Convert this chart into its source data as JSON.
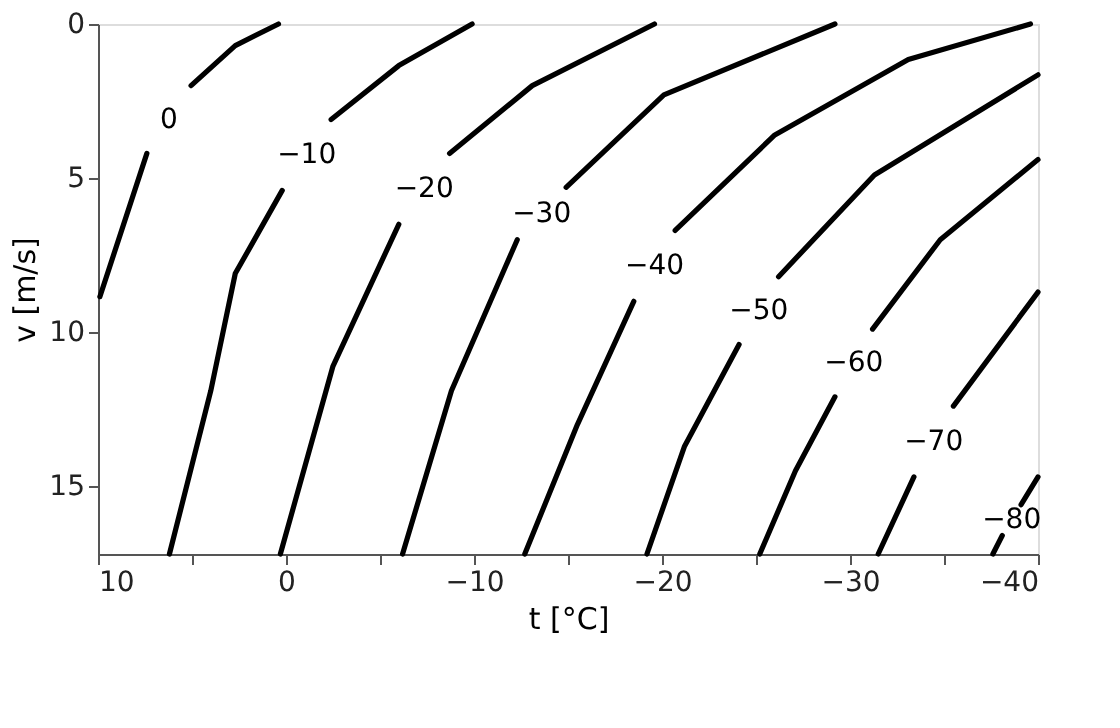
{
  "chart_data": {
    "type": "line",
    "xlabel": "t [°C]",
    "ylabel": "v [m/s]",
    "xlim": [
      10,
      -40
    ],
    "ylim": [
      17.2,
      0
    ],
    "xticks": [
      10,
      {
        "value": 5,
        "label": null
      },
      0,
      {
        "value": -5,
        "label": null
      },
      -10,
      {
        "value": -15,
        "label": null
      },
      -20,
      {
        "value": -25,
        "label": null
      },
      -30,
      {
        "value": -35,
        "label": null
      },
      -40
    ],
    "yticks": [
      0,
      5,
      10,
      15
    ],
    "grid": false,
    "legend": false,
    "marker": "none",
    "line_style": "solid",
    "series": [
      {
        "name": "0",
        "color": "#000000",
        "x": [
          9.9,
          7.4,
          6.2,
          5.05,
          2.7,
          0.4
        ],
        "values": [
          8.85,
          4.2,
          null,
          2.0,
          0.7,
          0
        ]
      },
      {
        "name": "−10",
        "color": "#000000",
        "x": [
          6.2,
          4.0,
          2.7,
          0.2,
          -1.1,
          -2.4,
          -6.0,
          -9.9
        ],
        "values": [
          17.2,
          11.9,
          8.1,
          5.4,
          null,
          3.1,
          1.35,
          0
        ]
      },
      {
        "name": "−20",
        "color": "#000000",
        "x": [
          0.3,
          -2.5,
          -6.0,
          -7.4,
          -8.7,
          -13.1,
          -19.6
        ],
        "values": [
          17.2,
          11.1,
          6.5,
          null,
          4.2,
          2.0,
          0
        ]
      },
      {
        "name": "−30",
        "color": "#000000",
        "x": [
          -6.2,
          -8.8,
          -12.3,
          -13.6,
          -14.9,
          -20.1,
          -29.2
        ],
        "values": [
          17.2,
          11.9,
          7.0,
          null,
          5.3,
          2.3,
          0
        ]
      },
      {
        "name": "−40",
        "color": "#000000",
        "x": [
          -12.7,
          -15.5,
          -18.5,
          -19.6,
          -20.7,
          -26.0,
          -33.1,
          -39.6
        ],
        "values": [
          17.2,
          13.0,
          9.0,
          null,
          6.7,
          3.6,
          1.15,
          0
        ]
      },
      {
        "name": "−50",
        "color": "#000000",
        "x": [
          -19.2,
          -21.2,
          -24.1,
          -25.1,
          -26.2,
          -31.3,
          -40
        ],
        "values": [
          17.2,
          13.7,
          10.4,
          null,
          8.2,
          4.9,
          1.65
        ]
      },
      {
        "name": "−60",
        "color": "#000000",
        "x": [
          -25.2,
          -27.1,
          -29.2,
          -30.2,
          -31.2,
          -34.8,
          -40
        ],
        "values": [
          17.2,
          14.5,
          12.1,
          null,
          9.9,
          7.0,
          4.4
        ]
      },
      {
        "name": "−70",
        "color": "#000000",
        "x": [
          -31.5,
          -33.4,
          -34.4,
          -35.5,
          -40
        ],
        "values": [
          17.2,
          14.7,
          null,
          12.4,
          8.7
        ]
      },
      {
        "name": "−80",
        "color": "#000000",
        "x": [
          -37.6,
          -38.1,
          -38.6,
          -39.1,
          -40
        ],
        "values": [
          17.2,
          16.6,
          null,
          15.6,
          14.7
        ]
      }
    ]
  }
}
